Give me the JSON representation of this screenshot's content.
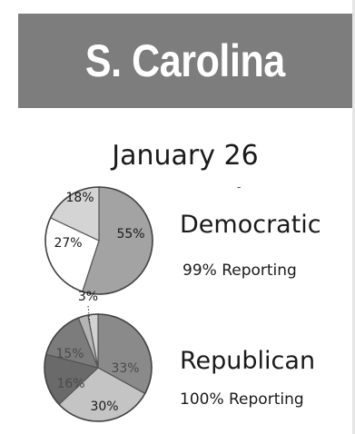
{
  "header": {
    "title": "S. Carolina"
  },
  "date": "January 26",
  "chart_data": [
    {
      "type": "pie",
      "race": "Democratic",
      "reporting": "99% Reporting",
      "slices": [
        {
          "label": "55%",
          "value": 55,
          "color": "#a3a3a3"
        },
        {
          "label": "27%",
          "value": 27,
          "color": "#ffffff"
        },
        {
          "label": "18%",
          "value": 18,
          "color": "#d4d4d4"
        }
      ]
    },
    {
      "type": "pie",
      "race": "Republican",
      "reporting": "100% Reporting",
      "slices": [
        {
          "label": "33%",
          "value": 33,
          "color": "#8a8a8a"
        },
        {
          "label": "30%",
          "value": 30,
          "color": "#c4c4c4"
        },
        {
          "label": "16%",
          "value": 16,
          "color": "#6a6a6a"
        },
        {
          "label": "15%",
          "value": 15,
          "color": "#7c7c7c"
        },
        {
          "label": "3%",
          "value": 3,
          "color": "#b4b4b4"
        },
        {
          "label": "",
          "value": 3,
          "color": "#d2d2d2"
        }
      ]
    }
  ]
}
